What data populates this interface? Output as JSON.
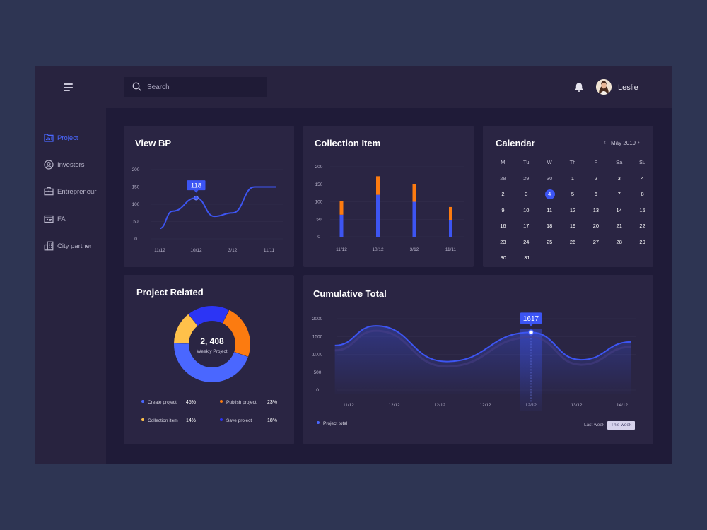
{
  "topbar": {
    "search_placeholder": "Search",
    "user_name": "Leslie"
  },
  "sidebar": {
    "items": [
      {
        "label": "Project",
        "icon": "folder-chart-icon",
        "active": true
      },
      {
        "label": "Investors",
        "icon": "user-circle-icon"
      },
      {
        "label": "Entrepreneur",
        "icon": "briefcase-icon"
      },
      {
        "label": "FA",
        "icon": "id-card-icon"
      },
      {
        "label": "City partner",
        "icon": "buildings-icon"
      }
    ]
  },
  "view_bp": {
    "title": "View BP",
    "tooltip": "118",
    "chart_data": {
      "type": "line",
      "x": [
        "11/12",
        "10/12",
        "3/12",
        "11/11"
      ],
      "yticks": [
        200,
        150,
        100,
        50,
        0
      ],
      "ylim": [
        0,
        200
      ],
      "series": [
        {
          "points": [
            [
              0,
              30
            ],
            [
              0.35,
              80
            ],
            [
              1,
              118
            ],
            [
              1.5,
              65
            ],
            [
              2,
              75
            ],
            [
              2.6,
              150
            ],
            [
              3.2,
              150
            ]
          ]
        }
      ]
    }
  },
  "collection": {
    "title": "Collection Item",
    "chart_data": {
      "type": "bar",
      "categories": [
        "11/12",
        "10/12",
        "3/12",
        "11/11"
      ],
      "yticks": [
        200,
        150,
        100,
        50,
        0
      ],
      "ylim": [
        0,
        200
      ],
      "series": [
        {
          "values": [
            63,
            120,
            100,
            47
          ]
        },
        {
          "values": [
            40,
            53,
            50,
            38
          ]
        }
      ]
    }
  },
  "calendar": {
    "title": "Calendar",
    "month": "May 2019",
    "weekdays": [
      "M",
      "Tu",
      "W",
      "Th",
      "F",
      "Sa",
      "Su"
    ],
    "weeks": [
      [
        "28",
        "29",
        "30",
        "1",
        "2",
        "3",
        "4"
      ],
      [
        "2",
        "3",
        "4",
        "5",
        "6",
        "7",
        "8"
      ],
      [
        "9",
        "10",
        "11",
        "12",
        "13",
        "14",
        "15"
      ],
      [
        "16",
        "17",
        "18",
        "19",
        "20",
        "21",
        "22"
      ],
      [
        "23",
        "24",
        "25",
        "26",
        "27",
        "28",
        "29"
      ],
      [
        "30",
        "31",
        "",
        "",
        "",
        "",
        ""
      ]
    ],
    "selected": "4"
  },
  "project_related": {
    "title": "Project Related",
    "center_value": "2, 408",
    "center_label": "Weekly  Project",
    "chart_data": {
      "type": "pie",
      "slices": [
        {
          "label": "Create project",
          "value": 45,
          "pct": "45%",
          "color": "#4a67ff"
        },
        {
          "label": "Publish project",
          "value": 23,
          "pct": "23%",
          "color": "#fc7b10"
        },
        {
          "label": "Collection item",
          "value": 14,
          "pct": "14%",
          "color": "#ffc14a"
        },
        {
          "label": "Save project",
          "value": 18,
          "pct": "18%",
          "color": "#2c35f5"
        }
      ]
    }
  },
  "cumulative": {
    "title": "Cumulative Total",
    "tooltip": "1617",
    "legend": "Project total",
    "toggle": {
      "last_week": "Last week",
      "this_week": "This week"
    },
    "chart_data": {
      "type": "area",
      "x": [
        "11/12",
        "12/12",
        "12/12",
        "12/12",
        "12/12",
        "13/12",
        "14/12"
      ],
      "yticks": [
        2000,
        1500,
        1000,
        500,
        0
      ],
      "ylim": [
        0,
        2000
      ],
      "series": [
        {
          "name": "Project total",
          "points": [
            [
              -0.3,
              1250
            ],
            [
              0.6,
              1800
            ],
            [
              2.15,
              800
            ],
            [
              4,
              1617
            ],
            [
              5.1,
              850
            ],
            [
              6.2,
              1350
            ]
          ]
        }
      ],
      "highlight_index": 4
    }
  },
  "colors": {
    "accent": "#3c55f4",
    "orange": "#fc7b10",
    "yellow": "#ffc14a",
    "bg": "#2e3553",
    "panel": "#2a2543"
  }
}
